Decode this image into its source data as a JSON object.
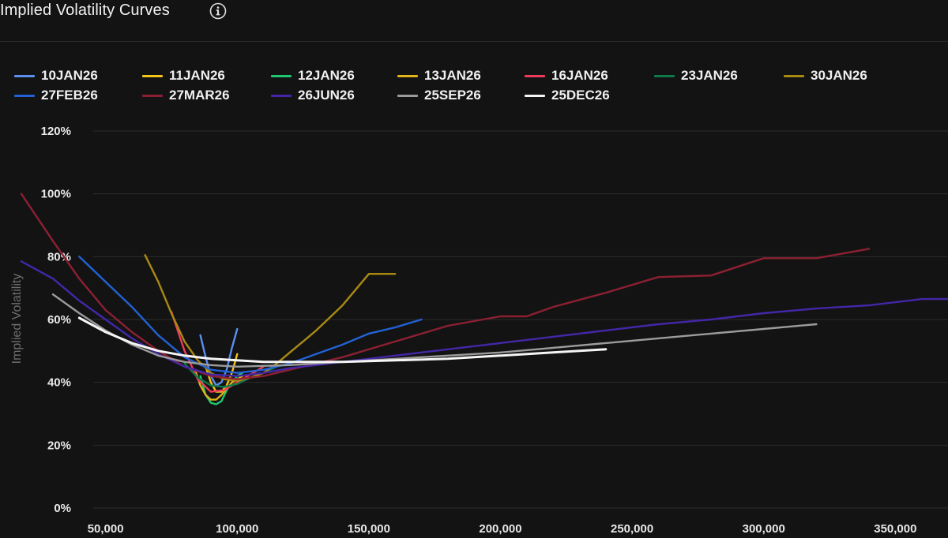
{
  "header": {
    "title": "Implied Volatility Curves",
    "info_icon": "info-circle-icon"
  },
  "chart_data": {
    "type": "line",
    "title": "Implied Volatility Curves",
    "xlabel": "",
    "ylabel": "Implied Volatility",
    "xlim": [
      15000,
      370000
    ],
    "ylim": [
      0,
      120
    ],
    "x_ticks": [
      50000,
      100000,
      150000,
      200000,
      250000,
      300000,
      350000
    ],
    "x_tick_labels": [
      "50,000",
      "100,000",
      "150,000",
      "200,000",
      "250,000",
      "300,000",
      "350,000"
    ],
    "y_ticks": [
      0,
      20,
      40,
      60,
      80,
      100,
      120
    ],
    "y_tick_labels": [
      "0%",
      "20%",
      "40%",
      "60%",
      "80%",
      "100%",
      "120%"
    ],
    "grid": "horizontal",
    "legend_position": "top",
    "series": [
      {
        "name": "10JAN26",
        "color": "#5b8ff0",
        "x": [
          86000,
          88000,
          90000,
          92000,
          94000,
          96000,
          98000,
          100000
        ],
        "y": [
          55,
          48,
          42,
          39,
          40,
          44,
          51,
          57
        ]
      },
      {
        "name": "11JAN26",
        "color": "#f5c518",
        "x": [
          88000,
          90000,
          92000,
          94000,
          96000,
          98000,
          100000
        ],
        "y": [
          45,
          40,
          37,
          37,
          39,
          43,
          49
        ]
      },
      {
        "name": "12JAN26",
        "color": "#1ec86e",
        "x": [
          86000,
          88000,
          90000,
          92000,
          94000,
          96000,
          98000,
          100000,
          102000
        ],
        "y": [
          42,
          36,
          33.5,
          33,
          34,
          37.5,
          40,
          42,
          43
        ]
      },
      {
        "name": "13JAN26",
        "color": "#e0b21c",
        "x": [
          84000,
          86000,
          88000,
          90000,
          92000,
          94000,
          96000,
          98000,
          100000,
          102000
        ],
        "y": [
          44,
          39,
          36,
          34.5,
          34.5,
          36,
          38,
          40,
          41,
          42
        ]
      },
      {
        "name": "16JAN26",
        "color": "#ee3b5c",
        "x": [
          75000,
          80000,
          85000,
          90000,
          95000,
          100000,
          105000,
          110000
        ],
        "y": [
          62.5,
          50,
          41,
          37,
          37.5,
          40,
          42.5,
          45
        ]
      },
      {
        "name": "23JAN26",
        "color": "#0e7a48",
        "x": [
          80000,
          85000,
          90000,
          95000,
          100000,
          105000,
          110000,
          115000
        ],
        "y": [
          46,
          41.5,
          39,
          38.5,
          39.5,
          41.5,
          43,
          45
        ]
      },
      {
        "name": "30JAN26",
        "color": "#a88a12",
        "x": [
          65000,
          70000,
          75000,
          80000,
          85000,
          90000,
          95000,
          100000,
          105000,
          110000,
          115000,
          120000,
          125000,
          130000,
          135000,
          140000,
          145000,
          150000,
          160000
        ],
        "y": [
          80.5,
          72,
          62,
          53,
          47,
          43,
          41,
          40.5,
          41.5,
          43,
          46,
          49.5,
          53,
          56.5,
          60.5,
          64.5,
          69.5,
          74.5,
          74.5
        ]
      },
      {
        "name": "27FEB26",
        "color": "#2262d4",
        "x": [
          40000,
          50000,
          60000,
          70000,
          80000,
          90000,
          100000,
          110000,
          120000,
          130000,
          140000,
          150000,
          160000,
          170000
        ],
        "y": [
          80,
          72,
          64,
          55,
          48,
          44,
          43,
          44,
          46,
          49,
          52,
          55.5,
          57.5,
          60
        ]
      },
      {
        "name": "27MAR26",
        "color": "#8c2032",
        "x": [
          18000,
          30000,
          40000,
          50000,
          60000,
          70000,
          80000,
          90000,
          100000,
          110000,
          120000,
          140000,
          160000,
          180000,
          200000,
          210000,
          220000,
          240000,
          260000,
          280000,
          300000,
          320000,
          340000
        ],
        "y": [
          100,
          85,
          73,
          63,
          56,
          50,
          45,
          42,
          41,
          42,
          44,
          48,
          53,
          58,
          61,
          61,
          64,
          68.5,
          73.5,
          74,
          79.5,
          79.5,
          82.5
        ]
      },
      {
        "name": "26JUN26",
        "color": "#4327a8",
        "x": [
          18000,
          30000,
          40000,
          50000,
          60000,
          70000,
          80000,
          90000,
          100000,
          110000,
          120000,
          140000,
          160000,
          180000,
          200000,
          220000,
          240000,
          260000,
          280000,
          300000,
          320000,
          340000,
          360000,
          370000
        ],
        "y": [
          78.5,
          73,
          66,
          60,
          54,
          49,
          45,
          42.5,
          42,
          43,
          44.5,
          46.5,
          48.5,
          50.5,
          52.5,
          54.5,
          56.5,
          58.5,
          60,
          62,
          63.5,
          64.5,
          66.5,
          66.5
        ]
      },
      {
        "name": "25SEP26",
        "color": "#9c9c9c",
        "x": [
          30000,
          40000,
          50000,
          60000,
          70000,
          80000,
          90000,
          100000,
          120000,
          140000,
          160000,
          180000,
          200000,
          220000,
          240000,
          260000,
          280000,
          300000,
          320000
        ],
        "y": [
          68,
          62,
          56.5,
          52,
          48.5,
          46.5,
          45.5,
          45,
          45.5,
          46.5,
          47.5,
          48.5,
          49.5,
          51,
          52.5,
          54,
          55.5,
          57,
          58.5
        ]
      },
      {
        "name": "25DEC26",
        "color": "#f5f5f5",
        "x": [
          40000,
          50000,
          60000,
          70000,
          80000,
          90000,
          100000,
          110000,
          120000,
          140000,
          160000,
          180000,
          200000,
          220000,
          240000
        ],
        "y": [
          60.5,
          56,
          52.5,
          50,
          48.5,
          47.5,
          47,
          46.5,
          46.5,
          46.5,
          47,
          47.5,
          48.5,
          49.5,
          50.5
        ]
      }
    ]
  }
}
